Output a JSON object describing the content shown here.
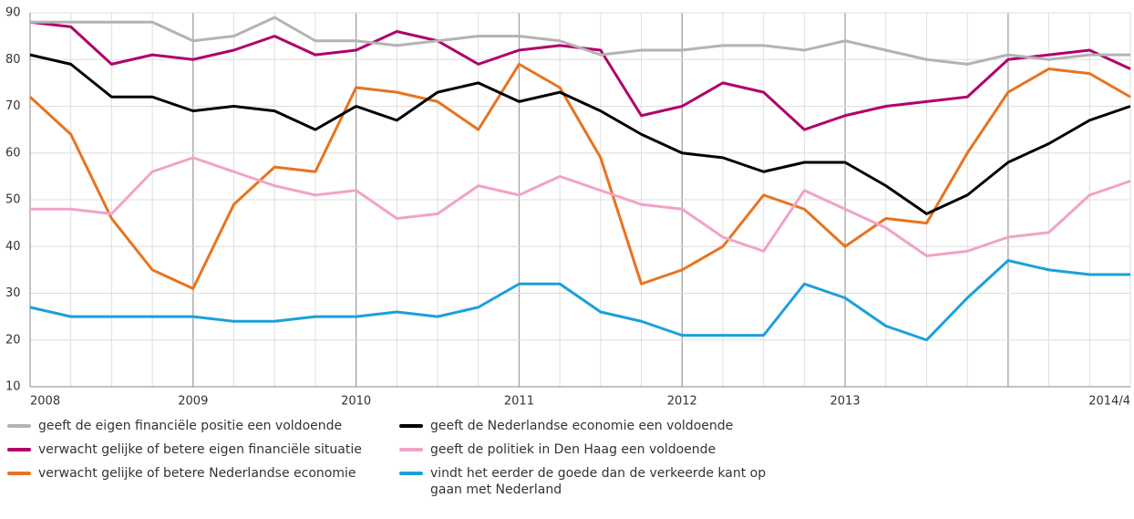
{
  "chart_data": {
    "type": "line",
    "categories": [
      "2008",
      null,
      null,
      null,
      "2009",
      null,
      null,
      null,
      "2010",
      null,
      null,
      null,
      "2011",
      null,
      null,
      null,
      "2012",
      null,
      null,
      null,
      "2013",
      null,
      null,
      null,
      null,
      null,
      null,
      "2014/4"
    ],
    "year_starts": [
      4,
      8,
      12,
      16,
      20,
      24
    ],
    "ylim": [
      10,
      90
    ],
    "yticks": [
      10,
      20,
      30,
      40,
      50,
      60,
      70,
      80,
      90
    ],
    "grid": true,
    "series": [
      {
        "name": "geeft de eigen financiële positie een voldoende",
        "color": "#b3b3b3",
        "values": [
          88,
          88,
          88,
          88,
          84,
          85,
          89,
          84,
          84,
          83,
          84,
          85,
          85,
          84,
          81,
          82,
          82,
          83,
          83,
          82,
          84,
          82,
          80,
          79,
          81,
          80,
          81,
          81
        ]
      },
      {
        "name": "geeft de Nederlandse economie een voldoende",
        "color": "#000000",
        "values": [
          81,
          79,
          72,
          72,
          69,
          70,
          69,
          65,
          70,
          67,
          73,
          75,
          71,
          73,
          69,
          64,
          60,
          59,
          56,
          58,
          58,
          53,
          47,
          51,
          58,
          62,
          67,
          70
        ]
      },
      {
        "name": "verwacht gelijke of betere eigen financiële situatie",
        "color": "#b0006a",
        "values": [
          88,
          87,
          79,
          81,
          80,
          82,
          85,
          81,
          82,
          86,
          84,
          79,
          82,
          83,
          82,
          68,
          70,
          75,
          73,
          65,
          68,
          70,
          71,
          72,
          80,
          81,
          82,
          78
        ]
      },
      {
        "name": "geeft de politiek in Den Haag een voldoende",
        "color": "#f2a2c9",
        "values": [
          48,
          48,
          47,
          56,
          59,
          56,
          53,
          51,
          52,
          46,
          47,
          53,
          51,
          55,
          52,
          49,
          48,
          42,
          39,
          52,
          48,
          44,
          38,
          39,
          42,
          43,
          51,
          54
        ]
      },
      {
        "name": "verwacht gelijke of betere Nederlandse economie",
        "color": "#e8731e",
        "values": [
          72,
          64,
          46,
          35,
          31,
          49,
          57,
          56,
          74,
          73,
          71,
          65,
          79,
          74,
          59,
          32,
          35,
          40,
          51,
          48,
          40,
          46,
          45,
          60,
          73,
          78,
          77,
          72
        ]
      },
      {
        "name": "vindt het eerder de goede dan de verkeerde kant op gaan met Nederland",
        "color": "#1aa0dc",
        "values": [
          27,
          25,
          25,
          25,
          25,
          24,
          24,
          25,
          25,
          26,
          25,
          27,
          32,
          32,
          26,
          24,
          21,
          21,
          21,
          32,
          29,
          23,
          20,
          29,
          37,
          35,
          34,
          34
        ]
      }
    ]
  }
}
